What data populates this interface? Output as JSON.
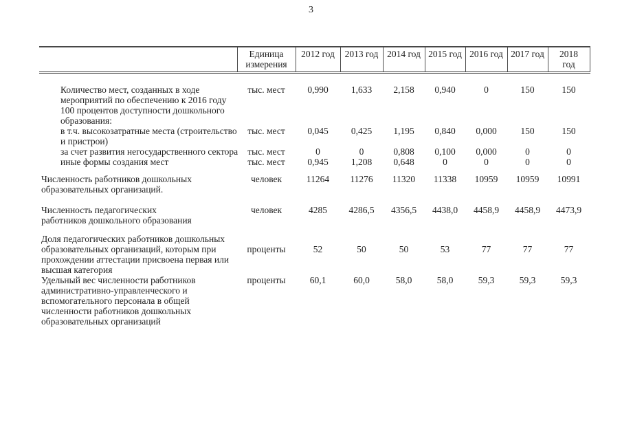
{
  "page": {
    "number": "3"
  },
  "colors": {
    "background": "#ffffff",
    "ink": "#222222",
    "rule_line": "#4a4a4a"
  },
  "table": {
    "header": {
      "indicator": "",
      "unit": "Единица\nизмерения",
      "years": [
        "2012 год",
        "2013 год",
        "2014 год",
        "2015 год",
        "2016 год",
        "2017 год",
        "2018\nгод"
      ]
    },
    "rows": [
      {
        "indicator": "Количество мест, созданных в ходе\nмероприятий по обеспечению к 2016 году\n100 процентов доступности дошкольного\nобразования:",
        "unit": "тыс. мест",
        "values": [
          "0,990",
          "1,633",
          "2,158",
          "0,940",
          "0",
          "150",
          "150"
        ]
      },
      {
        "indicator": "в т.ч. высокозатратные места (строительство\nи пристрои)",
        "unit": "тыс. мест",
        "values": [
          "0,045",
          "0,425",
          "1,195",
          "0,840",
          "0,000",
          "150",
          "150"
        ]
      },
      {
        "indicator": "за счет развития негосударственного сектора",
        "unit": "тыс. мест",
        "values": [
          "0",
          "0",
          "0,808",
          "0,100",
          "0,000",
          "0",
          "0"
        ]
      },
      {
        "indicator": "иные формы создания мест",
        "unit": "тыс. мест",
        "values": [
          "0,945",
          "1,208",
          "0,648",
          "0",
          "0",
          "0",
          "0"
        ]
      },
      {
        "indicator": "Численность работников дошкольных\nобразовательных организаций.",
        "unit": "человек",
        "values": [
          "11264",
          "11276",
          "11320",
          "11338",
          "10959",
          "10959",
          "10991"
        ]
      },
      {
        "indicator": "Численность педагогических\nработников дошкольного образования",
        "unit": "человек",
        "values": [
          "4285",
          "4286,5",
          "4356,5",
          "4438,0",
          "4458,9",
          "4458,9",
          "4473,9"
        ]
      },
      {
        "indicator": "Доля педагогических работников дошкольных\nобразовательных организаций, которым при\nпрохождении аттестации присвоена первая или\nвысшая категория",
        "unit": "проценты",
        "values": [
          "52",
          "50",
          "50",
          "53",
          "77",
          "77",
          "77"
        ]
      },
      {
        "indicator": "Удельный вес численности работников\nадминистративно-управленческого и\nвспомогательного персонала в общей\nчисленности работников дошкольных\nобразовательных организаций",
        "unit": "проценты",
        "values": [
          "60,1",
          "60,0",
          "58,0",
          "58,0",
          "59,3",
          "59,3",
          "59,3"
        ]
      }
    ]
  }
}
